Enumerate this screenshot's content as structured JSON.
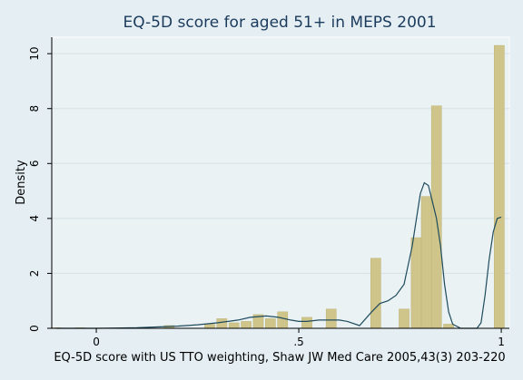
{
  "chart_data": {
    "type": "bar",
    "title": "EQ-5D score for aged 51+ in MEPS 2001",
    "xlabel": "EQ-5D score with US TTO weighting, Shaw JW Med Care 2005,43(3) 203-220",
    "ylabel": "Density",
    "xlim": [
      -0.11,
      1.02
    ],
    "ylim": [
      0,
      10.6
    ],
    "x_ticks": [
      {
        "value": 0,
        "label": "0"
      },
      {
        "value": 0.5,
        "label": ".5"
      },
      {
        "value": 1,
        "label": "1"
      }
    ],
    "y_ticks": [
      {
        "value": 0,
        "label": "0"
      },
      {
        "value": 2,
        "label": "2"
      },
      {
        "value": 4,
        "label": "4"
      },
      {
        "value": 6,
        "label": "6"
      },
      {
        "value": 8,
        "label": "8"
      },
      {
        "value": 10,
        "label": "10"
      }
    ],
    "grid": true,
    "bar_width": 0.025,
    "bars": [
      {
        "x": -0.1,
        "y": 0.02
      },
      {
        "x": -0.04,
        "y": 0.02
      },
      {
        "x": 0.12,
        "y": 0.03
      },
      {
        "x": 0.18,
        "y": 0.1
      },
      {
        "x": 0.28,
        "y": 0.15
      },
      {
        "x": 0.31,
        "y": 0.35
      },
      {
        "x": 0.34,
        "y": 0.2
      },
      {
        "x": 0.37,
        "y": 0.25
      },
      {
        "x": 0.4,
        "y": 0.5
      },
      {
        "x": 0.43,
        "y": 0.35
      },
      {
        "x": 0.46,
        "y": 0.6
      },
      {
        "x": 0.52,
        "y": 0.4
      },
      {
        "x": 0.58,
        "y": 0.7
      },
      {
        "x": 0.69,
        "y": 2.55
      },
      {
        "x": 0.76,
        "y": 0.7
      },
      {
        "x": 0.79,
        "y": 3.3
      },
      {
        "x": 0.815,
        "y": 4.8
      },
      {
        "x": 0.84,
        "y": 8.1
      },
      {
        "x": 0.87,
        "y": 0.15
      },
      {
        "x": 0.995,
        "y": 10.3
      }
    ],
    "density_line": {
      "x": [
        -0.1,
        0.0,
        0.1,
        0.15,
        0.2,
        0.25,
        0.3,
        0.35,
        0.38,
        0.42,
        0.45,
        0.48,
        0.5,
        0.52,
        0.55,
        0.58,
        0.6,
        0.62,
        0.65,
        0.68,
        0.7,
        0.72,
        0.74,
        0.76,
        0.78,
        0.8,
        0.81,
        0.82,
        0.83,
        0.84,
        0.85,
        0.86,
        0.87,
        0.88,
        0.9,
        0.92,
        0.94,
        0.95,
        0.96,
        0.97,
        0.98,
        0.99,
        1.0
      ],
      "y": [
        0.0,
        0.0,
        0.02,
        0.05,
        0.08,
        0.13,
        0.2,
        0.3,
        0.4,
        0.45,
        0.4,
        0.3,
        0.25,
        0.25,
        0.3,
        0.3,
        0.3,
        0.25,
        0.1,
        0.6,
        0.9,
        1.0,
        1.2,
        1.6,
        3.0,
        4.9,
        5.3,
        5.2,
        4.6,
        4.0,
        3.0,
        1.6,
        0.6,
        0.15,
        0.0,
        0.0,
        0.0,
        0.2,
        1.2,
        2.5,
        3.5,
        4.0,
        4.05
      ]
    },
    "colors": {
      "bar": "#cfc58a",
      "bar_stroke": "#bdb376",
      "line": "#1f4b5d",
      "plot_bg": "#eaf2f3",
      "outer_bg": "#e4eef3",
      "grid": "#d4e1e6",
      "title": "#1b3b5c"
    }
  }
}
